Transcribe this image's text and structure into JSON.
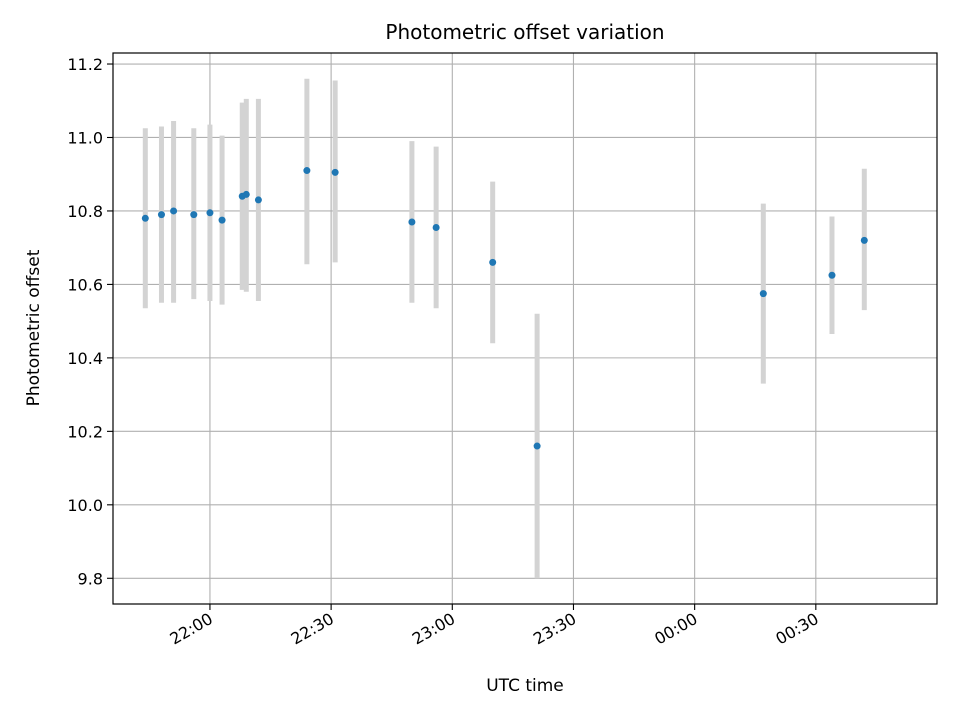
{
  "chart_data": {
    "type": "scatter",
    "title": "Photometric offset variation",
    "xlabel": "UTC time",
    "ylabel": "Photometric offset",
    "x_axis_type": "time",
    "xlim": [
      "21:36",
      "25:00"
    ],
    "ylim": [
      9.73,
      11.23
    ],
    "yticks": [
      9.8,
      10.0,
      10.2,
      10.4,
      10.6,
      10.8,
      11.0,
      11.2
    ],
    "ytick_labels": [
      "9.8",
      "10.0",
      "10.2",
      "10.4",
      "10.6",
      "10.8",
      "11.0",
      "11.2"
    ],
    "xticks": [
      "22:00",
      "22:30",
      "23:00",
      "23:30",
      "24:00",
      "24:30"
    ],
    "xtick_labels": [
      "22:00",
      "22:30",
      "23:00",
      "23:30",
      "00:00",
      "00:30"
    ],
    "grid": true,
    "colors": {
      "points": "#1f77b4",
      "errorbars": "#d3d3d3",
      "grid": "#b0b0b0"
    },
    "series": [
      {
        "points": [
          {
            "x": "21:44",
            "y": 10.78,
            "low": 10.535,
            "high": 11.025
          },
          {
            "x": "21:48",
            "y": 10.79,
            "low": 10.55,
            "high": 11.03
          },
          {
            "x": "21:51",
            "y": 10.8,
            "low": 10.55,
            "high": 11.045
          },
          {
            "x": "21:56",
            "y": 10.79,
            "low": 10.56,
            "high": 11.025
          },
          {
            "x": "22:00",
            "y": 10.795,
            "low": 10.555,
            "high": 11.035
          },
          {
            "x": "22:03",
            "y": 10.775,
            "low": 10.545,
            "high": 11.005
          },
          {
            "x": "22:08",
            "y": 10.84,
            "low": 10.585,
            "high": 11.095
          },
          {
            "x": "22:09",
            "y": 10.845,
            "low": 10.58,
            "high": 11.105
          },
          {
            "x": "22:12",
            "y": 10.83,
            "low": 10.555,
            "high": 11.105
          },
          {
            "x": "22:24",
            "y": 10.91,
            "low": 10.655,
            "high": 11.16
          },
          {
            "x": "22:31",
            "y": 10.905,
            "low": 10.66,
            "high": 11.155
          },
          {
            "x": "22:50",
            "y": 10.77,
            "low": 10.55,
            "high": 10.99
          },
          {
            "x": "22:56",
            "y": 10.755,
            "low": 10.535,
            "high": 10.975
          },
          {
            "x": "23:10",
            "y": 10.66,
            "low": 10.44,
            "high": 10.88
          },
          {
            "x": "23:21",
            "y": 10.16,
            "low": 9.8,
            "high": 10.52
          },
          {
            "x": "24:17",
            "y": 10.575,
            "low": 10.33,
            "high": 10.82
          },
          {
            "x": "24:34",
            "y": 10.625,
            "low": 10.465,
            "high": 10.785
          },
          {
            "x": "24:42",
            "y": 10.72,
            "low": 10.53,
            "high": 10.915
          }
        ]
      }
    ]
  }
}
